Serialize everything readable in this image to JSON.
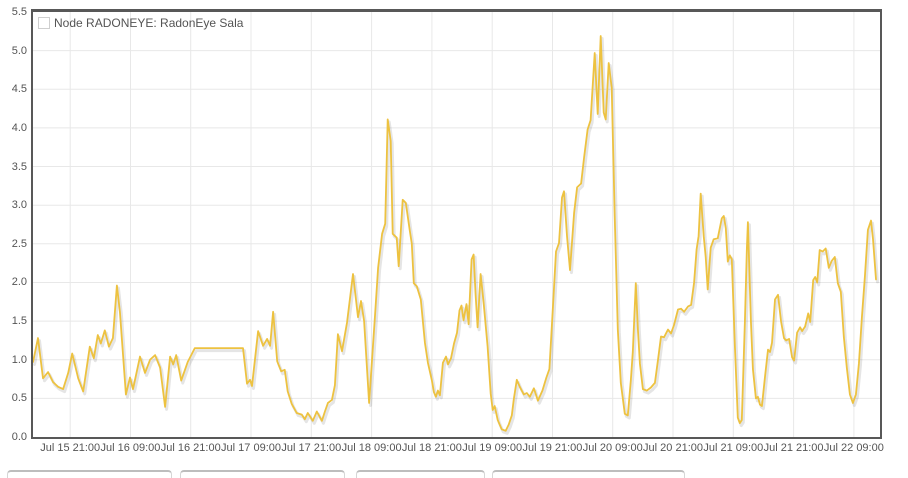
{
  "colors": {
    "line": "#EDC240",
    "shadow": "rgba(0,0,0,0.10)",
    "grid": "#e8e8e8",
    "border": "#585858",
    "text": "#545454",
    "background": "#ffffff"
  },
  "legend": {
    "label": "Node RADONEYE: RadonEye Sala"
  },
  "chart_data": {
    "type": "line",
    "title": "",
    "xlabel": "",
    "ylabel": "",
    "legend_position": "top-left",
    "grid": true,
    "y_axis": {
      "min": 0.0,
      "max": 5.5,
      "tick_step": 0.5,
      "tick_labels": [
        "0.0",
        "0.5",
        "1.0",
        "1.5",
        "2.0",
        "2.5",
        "3.0",
        "3.5",
        "4.0",
        "4.5",
        "5.0",
        "5.5"
      ]
    },
    "x_axis": {
      "tick_labels": [
        "Jul 15 21:00",
        "Jul 16 09:00",
        "Jul 16 21:00",
        "Jul 17 09:00",
        "Jul 17 21:00",
        "Jul 18 09:00",
        "Jul 18 21:00",
        "Jul 19 09:00",
        "Jul 19 21:00",
        "Jul 20 09:00",
        "Jul 20 21:00",
        "Jul 21 09:00",
        "Jul 21 21:00",
        "Jul 22 09:00"
      ],
      "tick_interval_hours": 12,
      "first_tick_offset_hours": 7.4,
      "total_hours": 168.6
    },
    "series": [
      {
        "name": "Node RADONEYE: RadonEye Sala",
        "color": "#EDC240",
        "points": [
          [
            0,
            0.97
          ],
          [
            1,
            1.28
          ],
          [
            2,
            0.76
          ],
          [
            3,
            0.84
          ],
          [
            4,
            0.71
          ],
          [
            5,
            0.65
          ],
          [
            6,
            0.62
          ],
          [
            7,
            0.83
          ],
          [
            7.8,
            1.08
          ],
          [
            9,
            0.76
          ],
          [
            10,
            0.59
          ],
          [
            11.3,
            1.17
          ],
          [
            12.1,
            1.02
          ],
          [
            12.9,
            1.32
          ],
          [
            13.5,
            1.21
          ],
          [
            14.3,
            1.38
          ],
          [
            15.1,
            1.17
          ],
          [
            15.9,
            1.28
          ],
          [
            16.7,
            1.96
          ],
          [
            17.3,
            1.62
          ],
          [
            18.5,
            0.55
          ],
          [
            19.3,
            0.77
          ],
          [
            19.9,
            0.62
          ],
          [
            21.3,
            1.04
          ],
          [
            22.3,
            0.83
          ],
          [
            23.3,
            1.0
          ],
          [
            24.3,
            1.06
          ],
          [
            25.3,
            0.9
          ],
          [
            26.3,
            0.39
          ],
          [
            27.3,
            1.04
          ],
          [
            27.9,
            0.94
          ],
          [
            28.5,
            1.06
          ],
          [
            29.5,
            0.73
          ],
          [
            30.8,
            0.97
          ],
          [
            32.2,
            1.15
          ],
          [
            41.8,
            1.15
          ],
          [
            42.6,
            0.69
          ],
          [
            43.2,
            0.74
          ],
          [
            43.6,
            0.66
          ],
          [
            44.8,
            1.37
          ],
          [
            45.8,
            1.18
          ],
          [
            46.6,
            1.27
          ],
          [
            47.2,
            1.18
          ],
          [
            47.8,
            1.62
          ],
          [
            48.6,
            0.98
          ],
          [
            49.4,
            0.85
          ],
          [
            50.1,
            0.87
          ],
          [
            50.7,
            0.59
          ],
          [
            51.5,
            0.43
          ],
          [
            52.5,
            0.31
          ],
          [
            53.5,
            0.29
          ],
          [
            54.1,
            0.23
          ],
          [
            54.7,
            0.31
          ],
          [
            55.7,
            0.21
          ],
          [
            56.5,
            0.33
          ],
          [
            57.5,
            0.21
          ],
          [
            58.1,
            0.33
          ],
          [
            58.7,
            0.44
          ],
          [
            59.5,
            0.48
          ],
          [
            60.1,
            0.67
          ],
          [
            60.7,
            1.33
          ],
          [
            61.5,
            1.11
          ],
          [
            62.5,
            1.48
          ],
          [
            63.7,
            2.11
          ],
          [
            64.7,
            1.55
          ],
          [
            65.3,
            1.76
          ],
          [
            65.9,
            1.5
          ],
          [
            66.9,
            0.44
          ],
          [
            68.1,
            1.59
          ],
          [
            68.7,
            2.19
          ],
          [
            69.5,
            2.63
          ],
          [
            70.1,
            2.76
          ],
          [
            70.6,
            4.11
          ],
          [
            71.2,
            3.83
          ],
          [
            71.6,
            2.63
          ],
          [
            72.4,
            2.58
          ],
          [
            72.8,
            2.21
          ],
          [
            73.6,
            3.07
          ],
          [
            74.2,
            3.03
          ],
          [
            75,
            2.67
          ],
          [
            75.4,
            2.5
          ],
          [
            75.8,
            1.99
          ],
          [
            76.4,
            1.95
          ],
          [
            77.2,
            1.78
          ],
          [
            78,
            1.22
          ],
          [
            78.6,
            0.96
          ],
          [
            79.4,
            0.73
          ],
          [
            79.8,
            0.58
          ],
          [
            80.2,
            0.52
          ],
          [
            80.6,
            0.6
          ],
          [
            81,
            0.54
          ],
          [
            81.6,
            0.96
          ],
          [
            82.2,
            1.04
          ],
          [
            82.6,
            0.94
          ],
          [
            83.2,
            1.02
          ],
          [
            83.8,
            1.21
          ],
          [
            84.4,
            1.35
          ],
          [
            84.9,
            1.64
          ],
          [
            85.3,
            1.7
          ],
          [
            85.7,
            1.51
          ],
          [
            86.3,
            1.72
          ],
          [
            86.7,
            1.46
          ],
          [
            87.3,
            2.3
          ],
          [
            87.7,
            2.36
          ],
          [
            88.1,
            1.84
          ],
          [
            88.5,
            1.42
          ],
          [
            89.1,
            2.11
          ],
          [
            89.7,
            1.74
          ],
          [
            90.5,
            1.17
          ],
          [
            91.1,
            0.56
          ],
          [
            91.5,
            0.35
          ],
          [
            91.9,
            0.4
          ],
          [
            92.5,
            0.22
          ],
          [
            93.3,
            0.1
          ],
          [
            94.1,
            0.08
          ],
          [
            94.7,
            0.16
          ],
          [
            95.3,
            0.28
          ],
          [
            95.7,
            0.49
          ],
          [
            96.3,
            0.74
          ],
          [
            96.9,
            0.65
          ],
          [
            97.7,
            0.55
          ],
          [
            98.3,
            0.57
          ],
          [
            98.9,
            0.52
          ],
          [
            99.7,
            0.63
          ],
          [
            100.5,
            0.47
          ],
          [
            101.4,
            0.6
          ],
          [
            102.2,
            0.77
          ],
          [
            102.8,
            0.88
          ],
          [
            103.5,
            1.7
          ],
          [
            104.1,
            2.4
          ],
          [
            104.7,
            2.51
          ],
          [
            105.3,
            3.1
          ],
          [
            105.7,
            3.18
          ],
          [
            106.3,
            2.6
          ],
          [
            106.9,
            2.16
          ],
          [
            107.7,
            2.9
          ],
          [
            108.3,
            3.23
          ],
          [
            109.1,
            3.28
          ],
          [
            109.7,
            3.62
          ],
          [
            110.4,
            3.98
          ],
          [
            111,
            4.1
          ],
          [
            111.8,
            4.97
          ],
          [
            112.4,
            4.18
          ],
          [
            113,
            5.19
          ],
          [
            113.6,
            4.2
          ],
          [
            114,
            4.11
          ],
          [
            114.6,
            4.84
          ],
          [
            115.2,
            4.52
          ],
          [
            115.8,
            2.86
          ],
          [
            116.4,
            1.39
          ],
          [
            117,
            0.7
          ],
          [
            117.8,
            0.3
          ],
          [
            118.4,
            0.28
          ],
          [
            119,
            0.73
          ],
          [
            119.4,
            1.1
          ],
          [
            120,
            1.99
          ],
          [
            120.4,
            1.39
          ],
          [
            120.8,
            0.95
          ],
          [
            121.4,
            0.62
          ],
          [
            122.2,
            0.6
          ],
          [
            123,
            0.64
          ],
          [
            123.8,
            0.7
          ],
          [
            124.4,
            1.0
          ],
          [
            125,
            1.3
          ],
          [
            125.6,
            1.29
          ],
          [
            126.4,
            1.39
          ],
          [
            127,
            1.34
          ],
          [
            127.6,
            1.45
          ],
          [
            128.4,
            1.65
          ],
          [
            129,
            1.66
          ],
          [
            129.6,
            1.62
          ],
          [
            130.4,
            1.69
          ],
          [
            131,
            1.71
          ],
          [
            131.6,
            2.0
          ],
          [
            132.1,
            2.43
          ],
          [
            132.5,
            2.6
          ],
          [
            132.9,
            3.15
          ],
          [
            133.5,
            2.6
          ],
          [
            133.9,
            2.33
          ],
          [
            134.3,
            1.91
          ],
          [
            134.9,
            2.45
          ],
          [
            135.5,
            2.56
          ],
          [
            136.3,
            2.57
          ],
          [
            137.1,
            2.83
          ],
          [
            137.5,
            2.86
          ],
          [
            137.9,
            2.7
          ],
          [
            138.3,
            2.27
          ],
          [
            138.7,
            2.35
          ],
          [
            139.1,
            2.3
          ],
          [
            139.7,
            1.2
          ],
          [
            140.3,
            0.25
          ],
          [
            140.7,
            0.18
          ],
          [
            141.1,
            0.22
          ],
          [
            141.7,
            1.5
          ],
          [
            142.1,
            2.45
          ],
          [
            142.3,
            2.78
          ],
          [
            142.9,
            1.5
          ],
          [
            143.3,
            0.88
          ],
          [
            143.9,
            0.5
          ],
          [
            144.3,
            0.52
          ],
          [
            144.7,
            0.42
          ],
          [
            145.1,
            0.4
          ],
          [
            145.7,
            0.78
          ],
          [
            146.3,
            1.13
          ],
          [
            146.7,
            1.1
          ],
          [
            147.1,
            1.22
          ],
          [
            147.7,
            1.78
          ],
          [
            148.3,
            1.84
          ],
          [
            148.9,
            1.5
          ],
          [
            149.5,
            1.28
          ],
          [
            149.9,
            1.25
          ],
          [
            150.5,
            1.27
          ],
          [
            151.1,
            1.03
          ],
          [
            151.5,
            0.99
          ],
          [
            152.1,
            1.35
          ],
          [
            152.7,
            1.42
          ],
          [
            153.1,
            1.37
          ],
          [
            153.7,
            1.43
          ],
          [
            154.3,
            1.6
          ],
          [
            154.7,
            1.49
          ],
          [
            155.3,
            2.03
          ],
          [
            155.7,
            2.07
          ],
          [
            156.1,
            2.0
          ],
          [
            156.6,
            2.42
          ],
          [
            157.2,
            2.4
          ],
          [
            157.8,
            2.44
          ],
          [
            158.4,
            2.19
          ],
          [
            159,
            2.28
          ],
          [
            159.6,
            2.33
          ],
          [
            160.2,
            1.99
          ],
          [
            160.8,
            1.88
          ],
          [
            161.4,
            1.3
          ],
          [
            162,
            0.9
          ],
          [
            162.6,
            0.55
          ],
          [
            163.2,
            0.44
          ],
          [
            163.8,
            0.55
          ],
          [
            164.4,
            0.95
          ],
          [
            165,
            1.55
          ],
          [
            165.6,
            2.08
          ],
          [
            166.2,
            2.68
          ],
          [
            166.8,
            2.8
          ],
          [
            167.2,
            2.56
          ],
          [
            167.8,
            2.04
          ]
        ]
      }
    ]
  }
}
